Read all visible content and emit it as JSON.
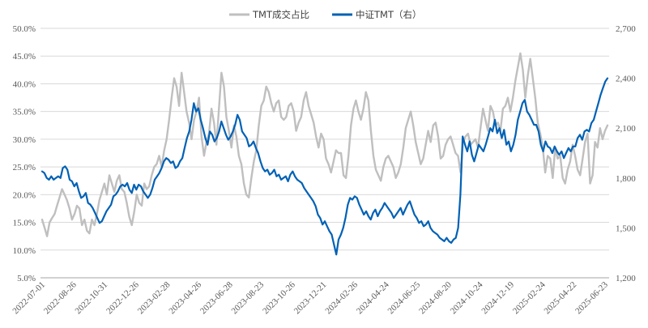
{
  "chart_data": {
    "type": "line",
    "title": "",
    "xlabel": "",
    "ylabel_left": "",
    "ylabel_right": "",
    "legend_position": "top-center",
    "grid": {
      "horizontal": true,
      "vertical": false
    },
    "y_left": {
      "min": 5,
      "max": 50,
      "ticks": [
        "5.0%",
        "10.0%",
        "15.0%",
        "20.0%",
        "25.0%",
        "30.0%",
        "35.0%",
        "40.0%",
        "45.0%",
        "50.0%"
      ]
    },
    "y_right": {
      "min": 1200,
      "max": 2700,
      "ticks": [
        "1,200",
        "1,500",
        "1,800",
        "2,100",
        "2,400",
        "2,700"
      ]
    },
    "x_tick_labels": [
      "2022-07-01",
      "2022-08-26",
      "2022-10-31",
      "2022-12-26",
      "2023-02-28",
      "2023-04-26",
      "2023-06-28",
      "2023-08-23",
      "2023-10-26",
      "2023-12-21",
      "2024-02-26",
      "2024-04-24",
      "2024-06-25",
      "2024-08-20",
      "2024-10-24",
      "2024-12-19",
      "2025-02-24",
      "2025-04-22",
      "2025-06-23"
    ],
    "series": [
      {
        "name": "TMT成交占比",
        "axis": "left",
        "color": "#bfbfbf",
        "values": [
          15.5,
          14.0,
          12.5,
          15.0,
          15.8,
          16.5,
          18.0,
          19.5,
          21.0,
          20.0,
          19.0,
          17.5,
          15.5,
          16.5,
          18.0,
          17.5,
          14.5,
          15.5,
          13.5,
          13.0,
          15.5,
          14.5,
          16.5,
          19.0,
          20.5,
          22.0,
          20.0,
          23.5,
          22.0,
          20.5,
          22.5,
          23.5,
          21.0,
          20.5,
          18.5,
          16.0,
          14.5,
          17.0,
          20.0,
          18.5,
          18.0,
          22.0,
          21.0,
          21.5,
          23.5,
          25.0,
          25.5,
          27.0,
          25.0,
          28.0,
          30.0,
          33.5,
          37.5,
          41.0,
          39.5,
          36.0,
          42.0,
          38.5,
          35.0,
          33.0,
          30.0,
          33.5,
          35.0,
          37.5,
          30.5,
          27.0,
          29.5,
          31.0,
          35.5,
          33.0,
          29.0,
          35.5,
          42.0,
          39.5,
          34.0,
          31.5,
          28.5,
          32.5,
          30.5,
          27.0,
          25.5,
          22.0,
          20.0,
          19.5,
          23.0,
          26.0,
          28.0,
          32.5,
          36.0,
          37.0,
          39.5,
          38.5,
          36.5,
          35.0,
          36.5,
          37.0,
          34.0,
          33.5,
          34.0,
          36.0,
          36.5,
          35.0,
          31.5,
          33.0,
          34.0,
          37.0,
          38.5,
          36.0,
          34.5,
          33.0,
          30.5,
          28.5,
          31.0,
          30.0,
          26.5,
          25.5,
          24.0,
          26.0,
          28.0,
          27.5,
          27.5,
          23.5,
          23.0,
          27.0,
          32.5,
          35.5,
          37.0,
          35.0,
          33.5,
          35.5,
          38.5,
          37.0,
          31.5,
          27.0,
          24.5,
          23.5,
          22.5,
          25.0,
          26.5,
          27.0,
          26.0,
          25.0,
          23.0,
          24.0,
          25.5,
          28.5,
          32.0,
          33.5,
          35.0,
          32.5,
          29.5,
          27.5,
          25.5,
          26.5,
          29.0,
          31.5,
          29.5,
          32.5,
          33.0,
          30.5,
          26.5,
          27.0,
          29.0,
          30.0,
          30.5,
          29.0,
          27.5,
          27.0,
          24.0,
          29.5,
          30.5,
          31.0,
          29.0,
          29.5,
          30.0,
          28.5,
          32.0,
          35.5,
          33.5,
          31.5,
          36.0,
          35.0,
          32.5,
          33.0,
          31.5,
          35.5,
          36.0,
          37.5,
          35.0,
          37.5,
          40.5,
          43.0,
          45.5,
          42.5,
          37.5,
          41.5,
          44.5,
          41.0,
          37.5,
          33.0,
          31.0,
          28.5,
          24.0,
          27.0,
          26.5,
          23.0,
          28.5,
          26.5,
          27.0,
          23.0,
          22.0,
          24.5,
          26.0,
          29.0,
          27.0,
          24.5,
          23.5,
          26.5,
          29.5,
          31.0,
          22.0,
          23.5,
          29.5,
          28.5,
          32.0,
          30.0,
          31.5,
          32.5
        ]
      },
      {
        "name": "中证TMT（右）",
        "axis": "right",
        "color": "#0061b5",
        "values": [
          1840,
          1830,
          1800,
          1790,
          1810,
          1790,
          1800,
          1810,
          1800,
          1860,
          1870,
          1850,
          1790,
          1780,
          1750,
          1770,
          1720,
          1680,
          1690,
          1710,
          1650,
          1640,
          1620,
          1590,
          1560,
          1530,
          1540,
          1570,
          1600,
          1620,
          1640,
          1690,
          1700,
          1720,
          1750,
          1760,
          1750,
          1770,
          1730,
          1710,
          1760,
          1730,
          1760,
          1750,
          1720,
          1700,
          1680,
          1700,
          1740,
          1790,
          1810,
          1830,
          1860,
          1900,
          1920,
          1910,
          1890,
          1900,
          1860,
          1870,
          1900,
          1920,
          1980,
          2040,
          2080,
          2150,
          2250,
          2200,
          2220,
          2150,
          2100,
          2040,
          2000,
          2080,
          2060,
          2020,
          2040,
          2080,
          2140,
          2100,
          2060,
          2030,
          2050,
          2080,
          2120,
          2180,
          2150,
          2080,
          2060,
          2040,
          1990,
          2000,
          2020,
          1980,
          1950,
          1900,
          1860,
          1840,
          1850,
          1820,
          1830,
          1850,
          1810,
          1820,
          1790,
          1800,
          1810,
          1780,
          1820,
          1840,
          1810,
          1790,
          1780,
          1770,
          1740,
          1720,
          1700,
          1680,
          1660,
          1630,
          1580,
          1560,
          1520,
          1540,
          1510,
          1480,
          1460,
          1400,
          1340,
          1430,
          1460,
          1500,
          1560,
          1640,
          1680,
          1670,
          1690,
          1680,
          1640,
          1610,
          1580,
          1600,
          1570,
          1550,
          1590,
          1610,
          1570,
          1600,
          1620,
          1650,
          1630,
          1610,
          1590,
          1560,
          1580,
          1600,
          1620,
          1580,
          1610,
          1640,
          1660,
          1620,
          1580,
          1560,
          1530,
          1540,
          1510,
          1520,
          1540,
          1500,
          1480,
          1470,
          1460,
          1440,
          1430,
          1420,
          1440,
          1420,
          1410,
          1430,
          1440,
          1500,
          1700,
          2050,
          2000,
          1960,
          2020,
          1940,
          1900,
          1950,
          2000,
          1980,
          1960,
          2000,
          2050,
          2100,
          2080,
          2150,
          2070,
          2100,
          2040,
          2090,
          2000,
          2020,
          1960,
          2000,
          2060,
          2150,
          2200,
          2250,
          2270,
          2200,
          2180,
          2150,
          2120,
          2120,
          2080,
          2000,
          1960,
          2020,
          1990,
          1980,
          1950,
          1990,
          1960,
          1940,
          1960,
          1920,
          1950,
          1980,
          1960,
          1990,
          1990,
          2040,
          2060,
          2030,
          2080,
          2090,
          2080,
          2130,
          2150,
          2200,
          2250,
          2300,
          2340,
          2380,
          2400
        ]
      }
    ]
  }
}
